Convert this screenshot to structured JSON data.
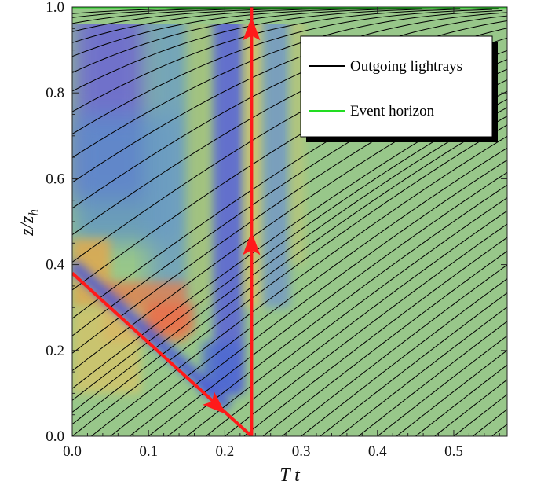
{
  "chart_data": {
    "type": "line",
    "title": "",
    "xlabel": "T t",
    "ylabel": "z/z_h",
    "ylabel_main": "z/z",
    "ylabel_sub": "h",
    "xlim": [
      0.0,
      0.57
    ],
    "ylim": [
      0.0,
      1.0
    ],
    "x_ticks": [
      "0.0",
      "0.1",
      "0.2",
      "0.3",
      "0.4",
      "0.5"
    ],
    "x_tick_values": [
      0.0,
      0.1,
      0.2,
      0.3,
      0.4,
      0.5
    ],
    "y_ticks": [
      "0.0",
      "0.2",
      "0.4",
      "0.6",
      "0.8",
      "1.0"
    ],
    "y_tick_values": [
      0.0,
      0.2,
      0.4,
      0.6,
      0.8,
      1.0
    ],
    "legend_position": "top-right",
    "legend": [
      {
        "label": "Outgoing lightrays",
        "color": "#000000"
      },
      {
        "label": "Event horizon",
        "color": "#22dd22"
      }
    ],
    "background_color": "#98c78a",
    "event_horizon": {
      "z": 1.0,
      "color": "#22dd22"
    },
    "lightray_start_times": [
      -1.0,
      -0.95,
      -0.9,
      -0.85,
      -0.8,
      -0.75,
      -0.7,
      -0.65,
      -0.6,
      -0.55,
      -0.5,
      -0.45,
      -0.4,
      -0.35,
      -0.3,
      -0.25,
      -0.2,
      -0.17,
      -0.14,
      -0.11,
      -0.08,
      -0.06,
      -0.04,
      -0.02,
      0.0,
      0.025,
      0.05,
      0.075,
      0.1,
      0.125,
      0.15,
      0.175,
      0.2,
      0.225,
      0.25,
      0.275,
      0.3,
      0.325,
      0.35,
      0.375,
      0.4,
      0.425,
      0.45,
      0.475,
      0.5,
      0.525,
      0.55
    ],
    "red_path": {
      "color": "#ff1a1a",
      "points": [
        [
          0.0,
          0.38
        ],
        [
          0.235,
          0.0
        ],
        [
          0.235,
          1.0
        ]
      ],
      "arrow_positions": [
        [
          0.19,
          0.07
        ],
        [
          0.235,
          0.45
        ],
        [
          0.235,
          0.95
        ]
      ]
    }
  }
}
